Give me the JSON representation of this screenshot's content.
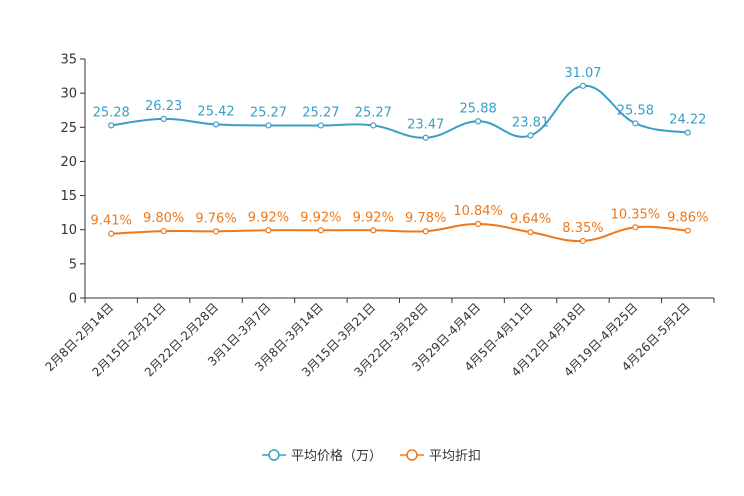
{
  "chart_data": {
    "type": "line",
    "categories": [
      "2月8日-2月14日",
      "2月15日-2月21日",
      "2月22日-2月28日",
      "3月1日-3月7日",
      "3月8日-3月14日",
      "3月15日-3月21日",
      "3月22日-3月28日",
      "3月29日-4月4日",
      "4月5日-4月11日",
      "4月12日-4月18日",
      "4月19日-4月25日",
      "4月26日-5月2日"
    ],
    "ylim": [
      0,
      35
    ],
    "yticks": [
      "0",
      "5",
      "10",
      "15",
      "20",
      "25",
      "30",
      "35"
    ],
    "series": [
      {
        "name": "平均价格（万）",
        "color": "#3a9fc6",
        "values": [
          25.28,
          26.23,
          25.42,
          25.27,
          25.27,
          25.27,
          23.47,
          25.88,
          23.81,
          31.07,
          25.58,
          24.22
        ],
        "labels": [
          "25.28",
          "26.23",
          "25.42",
          "25.27",
          "25.27",
          "25.27",
          "23.47",
          "25.88",
          "23.81",
          "31.07",
          "25.58",
          "24.22"
        ]
      },
      {
        "name": "平均折扣",
        "color": "#f07818",
        "values": [
          9.41,
          9.8,
          9.76,
          9.92,
          9.92,
          9.92,
          9.78,
          10.84,
          9.64,
          8.35,
          10.35,
          9.86
        ],
        "labels": [
          "9.41%",
          "9.80%",
          "9.76%",
          "9.92%",
          "9.92%",
          "9.92%",
          "9.78%",
          "10.84%",
          "9.64%",
          "8.35%",
          "10.35%",
          "9.86%"
        ]
      }
    ],
    "legend_position": "bottom-center"
  }
}
